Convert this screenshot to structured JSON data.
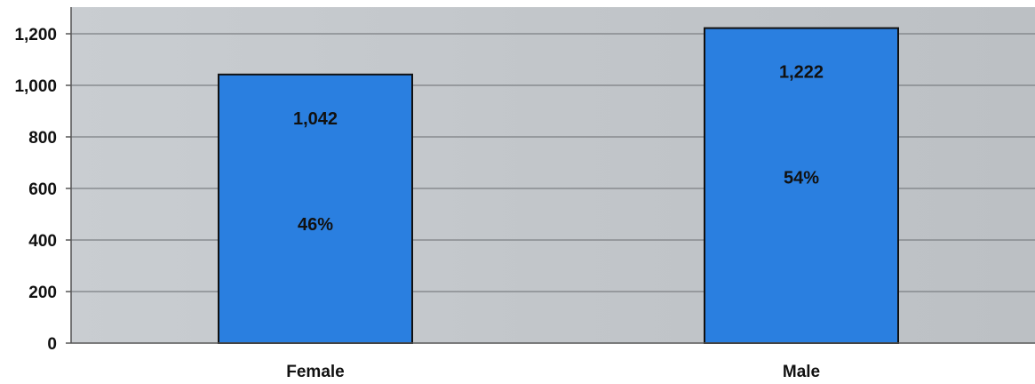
{
  "chart_data": {
    "type": "bar",
    "categories": [
      "Female",
      "Male"
    ],
    "values": [
      1042,
      1222
    ],
    "value_labels": [
      "1,042",
      "1,222"
    ],
    "percent_labels": [
      "46%",
      "54%"
    ],
    "title": "",
    "xlabel": "",
    "ylabel": "",
    "ylim": [
      0,
      1300
    ],
    "yticks": [
      0,
      200,
      400,
      600,
      800,
      1000,
      1200
    ],
    "ytick_labels": [
      "0",
      "200",
      "400",
      "600",
      "800",
      "1,000",
      "1,200"
    ],
    "grid": true,
    "legend": "none"
  },
  "colors": {
    "bar_fill": "#2a7fe0",
    "bar_stroke": "#111111",
    "plot_background": "#c4c8cc",
    "gridline": "#7c7f83",
    "axis": "#555555"
  }
}
